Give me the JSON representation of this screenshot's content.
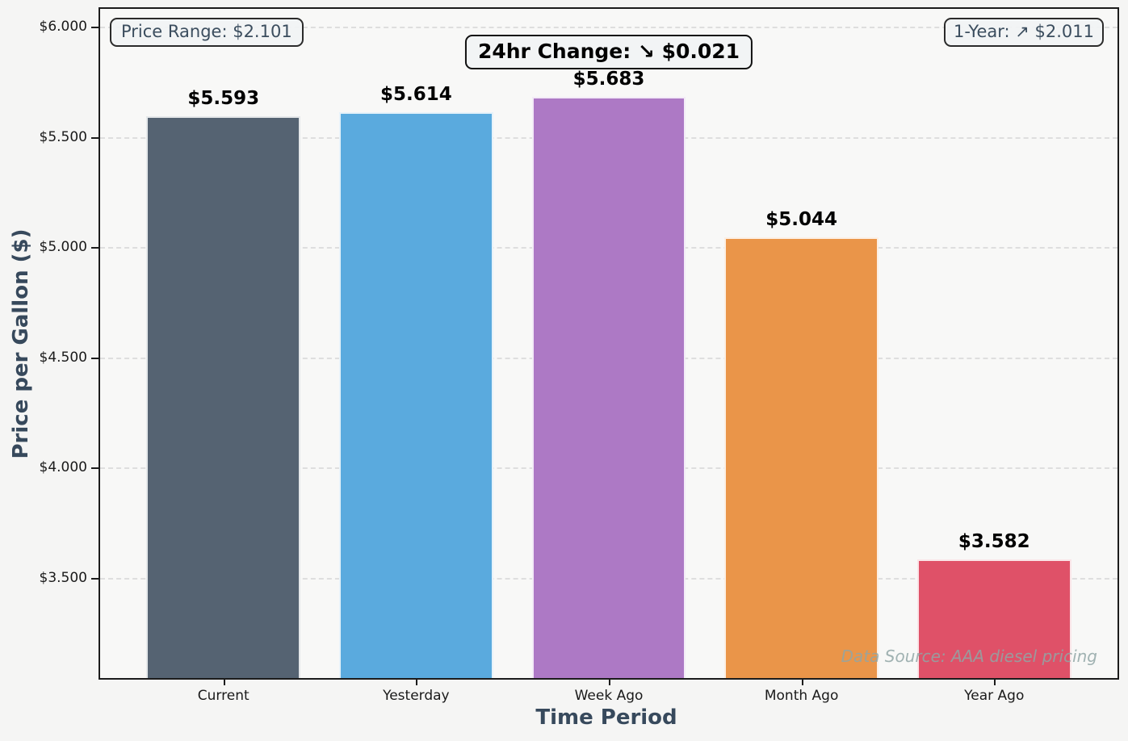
{
  "chart_data": {
    "type": "bar",
    "title": "",
    "categories": [
      "Current",
      "Yesterday",
      "Week Ago",
      "Month Ago",
      "Year Ago"
    ],
    "values": [
      5.593,
      5.614,
      5.683,
      5.044,
      3.582
    ],
    "value_labels": [
      "$5.593",
      "$5.614",
      "$5.683",
      "$5.044",
      "$3.582"
    ],
    "bar_colors": [
      "#556372",
      "#5aaade",
      "#ad79c5",
      "#ea9549",
      "#df5168"
    ],
    "xlabel": "Time Period",
    "ylabel": "Price per Gallon ($)",
    "ylim": [
      3.045,
      6.081
    ],
    "yticks": [
      {
        "value": 6.0,
        "label": "$6.000"
      },
      {
        "value": 5.5,
        "label": "$5.500"
      },
      {
        "value": 5.0,
        "label": "$5.000"
      },
      {
        "value": 4.5,
        "label": "$4.500"
      },
      {
        "value": 4.0,
        "label": "$4.000"
      },
      {
        "value": 3.5,
        "label": "$3.500"
      }
    ],
    "grid": "horizontal-dashed",
    "legend": "none"
  },
  "annotations": {
    "price_range": "Price Range: $2.101",
    "change_24hr": "24hr Change: ↘ $0.021",
    "one_year": "1-Year: ↗ $2.011",
    "data_source": "Data Source: AAA diesel pricing"
  },
  "icons": {
    "down_right_arrow": "↘",
    "up_right_arrow": "↗"
  },
  "colors": {
    "figure_background": "#f5f5f4",
    "plot_background": "#f8f8f7",
    "spine": "#1c1c1c",
    "gridline": "#dedede",
    "axis_title_text": "#37495c",
    "annotation_text": "#3b4d5e",
    "annotation_background": "#f1f3f4",
    "annotation_border": "#2b2b2b",
    "bar_value_text": "#000000",
    "data_source_text": "#91a6a6"
  }
}
